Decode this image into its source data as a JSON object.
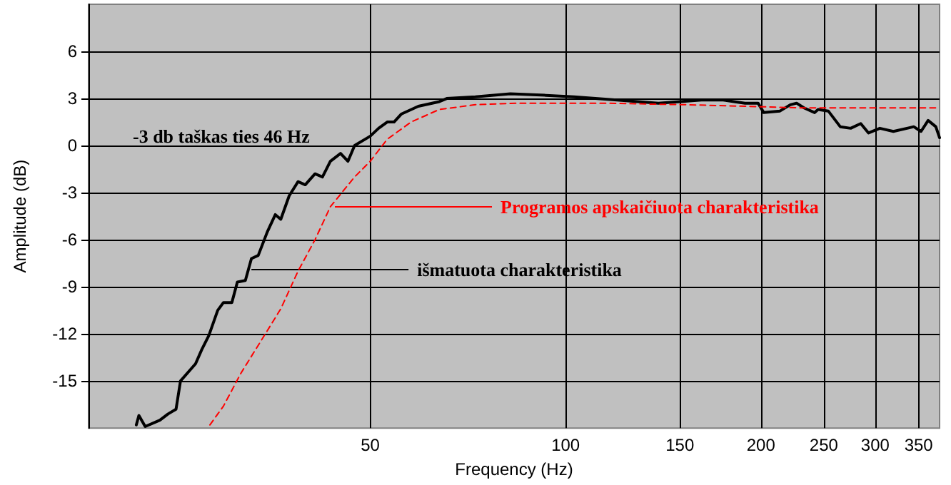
{
  "chart_data": {
    "type": "line",
    "xlabel": "Frequency (Hz)",
    "ylabel": "Amplitude (dB)",
    "log": "x",
    "xlim": [
      18.4,
      377
    ],
    "xticks": [
      50,
      100,
      150,
      200,
      250,
      300,
      350
    ],
    "ylim": [
      -18,
      9
    ],
    "yticks": [
      -15,
      -12,
      -9,
      -6,
      -3,
      0,
      3,
      6
    ],
    "grid": true,
    "marker": "none",
    "series": [
      {
        "color": "#000000",
        "line_style": "solid",
        "x": [
          21.8,
          22.0,
          22.5,
          23.7,
          24.4,
          25.1,
          25.5,
          26.9,
          27.5,
          28.2,
          29.1,
          29.7,
          30.6,
          31.2,
          32.1,
          32.8,
          33.6,
          34.7,
          35.7,
          36.4,
          37.5,
          38.7,
          39.7,
          41.1,
          42.2,
          43.4,
          45.0,
          46.2,
          47.3,
          50,
          51.5,
          53.1,
          54.4,
          55.8,
          59.3,
          63.9,
          65.6,
          72.6,
          82.2,
          93.3,
          103,
          120,
          139,
          162,
          175,
          189,
          198,
          202,
          214,
          222,
          227,
          233,
          242,
          245,
          254,
          265,
          275,
          285,
          293,
          305,
          320,
          344,
          353,
          362,
          372,
          377
        ],
        "values": [
          -17.8,
          -17.2,
          -17.9,
          -17.5,
          -17.1,
          -16.8,
          -15,
          -13.9,
          -13,
          -12.1,
          -10.5,
          -10,
          -10,
          -8.7,
          -8.6,
          -7.2,
          -7,
          -5.5,
          -4.4,
          -4.7,
          -3.2,
          -2.3,
          -2.5,
          -1.8,
          -2,
          -1,
          -0.5,
          -1,
          0,
          0.6,
          1.1,
          1.5,
          1.5,
          2,
          2.5,
          2.8,
          3,
          3.1,
          3.3,
          3.2,
          3.1,
          2.9,
          2.7,
          2.9,
          2.9,
          2.7,
          2.7,
          2.1,
          2.2,
          2.6,
          2.7,
          2.4,
          2.1,
          2.3,
          2.2,
          1.2,
          1.1,
          1.4,
          0.8,
          1.1,
          0.9,
          1.2,
          0.9,
          1.6,
          1.2,
          0.5
        ]
      },
      {
        "color": "#ff0000",
        "line_style": "dashed",
        "x": [
          28.3,
          29.7,
          31.6,
          34.1,
          36.4,
          38.7,
          41.1,
          43.4,
          47.3,
          50,
          53.1,
          57.8,
          63.9,
          72.6,
          84.3,
          114,
          154,
          189,
          231,
          377
        ],
        "values": [
          -17.8,
          -16.6,
          -14.5,
          -12.3,
          -10.4,
          -8,
          -6,
          -3.9,
          -2,
          -1,
          0.4,
          1.5,
          2.3,
          2.6,
          2.7,
          2.7,
          2.6,
          2.5,
          2.4,
          2.4
        ]
      }
    ],
    "annotations": [
      "-3 db taškas ties 46 Hz",
      {
        "text": "Programos apskaičiuota charakteristika",
        "x": 44.1,
        "y": -3.9
      },
      {
        "text": "išmatuota charakteristika",
        "x": 32.8,
        "y": -7.9
      }
    ]
  }
}
